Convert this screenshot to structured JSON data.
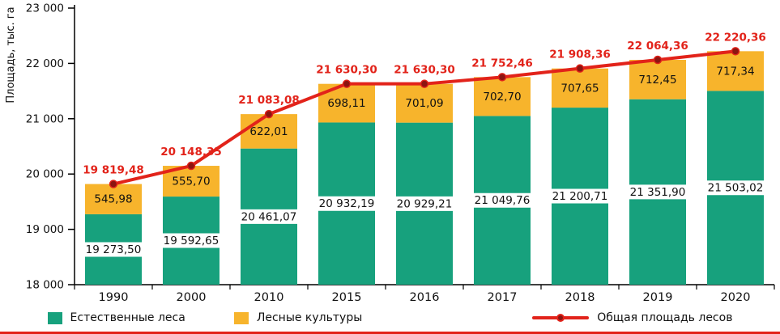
{
  "chart_data": {
    "type": "bar",
    "subtype": "stacked-bar-with-line",
    "title": "",
    "xlabel": "",
    "ylabel": "Площадь, тыс. га",
    "ylim": [
      18000,
      23000
    ],
    "ytick_values": [
      18000,
      19000,
      20000,
      21000,
      22000,
      23000
    ],
    "ytick_labels": [
      "18 000",
      "19 000",
      "20 000",
      "21 000",
      "22 000",
      "23 000"
    ],
    "grid": false,
    "legend_position": "bottom",
    "categories": [
      "1990",
      "2000",
      "2010",
      "2015",
      "2016",
      "2017",
      "2018",
      "2019",
      "2020"
    ],
    "series": [
      {
        "name": "Естественные леса",
        "color": "#17a17d",
        "values": [
          19273.5,
          19592.65,
          20461.07,
          20932.19,
          20929.21,
          21049.76,
          21200.71,
          21351.9,
          21503.02
        ],
        "labels": [
          "19 273,50",
          "19 592,65",
          "20 461,07",
          "20 932,19",
          "20 929,21",
          "21 049,76",
          "21 200,71",
          "21 351,90",
          "21 503,02"
        ]
      },
      {
        "name": "Лесные культуры",
        "color": "#f7b42c",
        "values": [
          545.98,
          555.7,
          622.01,
          698.11,
          701.09,
          702.7,
          707.65,
          712.45,
          717.34
        ],
        "labels": [
          "545,98",
          "555,70",
          "622,01",
          "698,11",
          "701,09",
          "702,70",
          "707,65",
          "712,45",
          "717,34"
        ]
      }
    ],
    "line": {
      "name": "Общая площадь лесов",
      "color": "#e2231a",
      "marker_color": "#8c1511",
      "values": [
        19819.48,
        20148.35,
        21083.08,
        21630.3,
        21630.3,
        21752.46,
        21908.36,
        22064.36,
        22220.36
      ],
      "labels": [
        "19 819,48",
        "20 148,35",
        "21 083,08",
        "21 630,30",
        "21 630,30",
        "21 752,46",
        "21 908,36",
        "22 064,36",
        "22 220,36"
      ]
    },
    "text_color": "#111111",
    "label_box_color": "#ffffff"
  }
}
